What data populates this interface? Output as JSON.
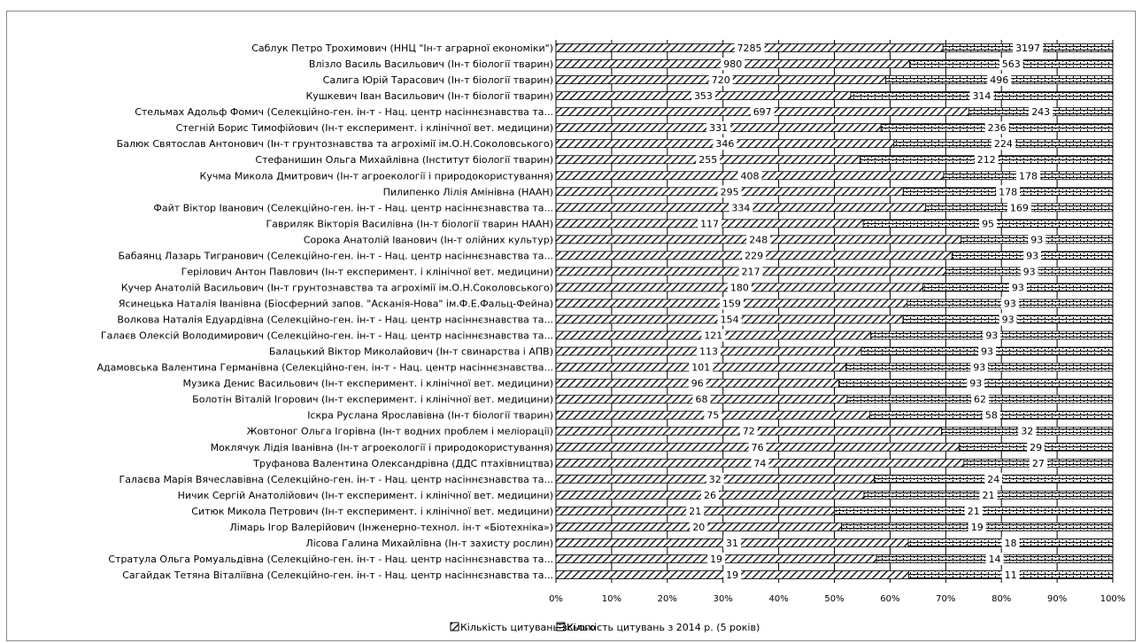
{
  "chart_data": {
    "type": "bar",
    "orientation": "horizontal",
    "stacking": "percent",
    "categories": [
      "Саблук Петро Трохимович (ННЦ \"Ін-т аграрної економіки\")",
      "Влізло Василь Васильович (Ін-т біології тварин)",
      "Салига Юрій Тарасович (Ін-т біології тварин)",
      "Кушкевич Іван Васильович (Ін-т біології тварин)",
      "Стельмах Адольф Фомич (Селекційно-ген. ін-т - Нац. центр насіннєзнавства та...",
      "Стегній Борис Тимофійович (Ін-т експеримент. і клінічної вет. медицини)",
      "Балюк Святослав Антонович (Ін-т грунтознавства та агрохімії ім.О.Н.Соколовського)",
      "Стефанишин Ольга Михайлівна (Інститут біології тварин)",
      "Кучма Микола Дмитрович (Ін-т агроекології і природокористування)",
      "Пилипенко Лілія Амінівна (НААН)",
      "Файт Віктор Іванович (Селекційно-ген. ін-т - Нац. центр насіннєзнавства та...",
      "Гавриляк Вікторія Василівна (Ін-т біології тварин НААН)",
      "Сорока Анатолій Іванович (Ін-т олійних культур)",
      "Бабаянц Лазарь Тигранович (Селекційно-ген. ін-т - Нац. центр насіннєзнавства та...",
      "Герілович Антон Павлович (Ін-т експеримент. і клінічної вет. медицини)",
      "Кучер Анатолій Васильович (Ін-т грунтознавства та агрохімії ім.О.Н.Соколовського)",
      "Ясинецька Наталія Іванівна (Біосферний запов. \"Асканія-Нова\" ім.Ф.Е.Фальц-Фейна)",
      "Волкова Наталія Едуардівна (Селекційно-ген. ін-т - Нац. центр насіннєзнавства та...",
      "Галаєв Олексій Володимирович (Селекційно-ген. ін-т - Нац. центр насіннєзнавства та...",
      "Балацький Віктор Миколайович (Ін-т свинарства і АПВ)",
      "Адамовська Валентина Германівна (Селекційно-ген. ін-т - Нац. центр насіннєзнавства...",
      "Музика Денис Васильович (Ін-т експеримент. і клінічної вет. медицини)",
      "Болотін Віталій Ігорович (Ін-т експеримент. і клінічної вет. медицини)",
      "Іскра Руслана Ярославівна (Ін-т біології тварин)",
      "Жовтоног Ольга Ігорівна (Ін-т водних проблем і меліорації)",
      "Моклячук Лідія Іванівна (Ін-т агроекології і природокористування)",
      "Труфанова Валентина Олександрівна (ДДС птахівництва)",
      "Галаєва Марія Вячеславівна (Селекційно-ген. ін-т - Нац. центр насіннєзнавства та...",
      "Ничик Сергій Анатолійович (Ін-т експеримент. і клінічної вет. медицини)",
      "Ситюк Микола Петрович (Ін-т експеримент. і клінічної вет. медицини)",
      "Лімарь Ігор Валерійович (Інженерно-технол. ін-т «Біотехніка»)",
      "Лісова Галина Михайлівна (Ін-т захисту рослин)",
      "Стратула Ольга Ромуальдівна (Селекційно-ген. ін-т - Нац. центр насіннєзнавства та...",
      "Сагайдак Тетяна Віталіївна (Селекційно-ген. ін-т - Нац. центр насіннєзнавства та..."
    ],
    "series": [
      {
        "name": "Кількість цитувань всього",
        "values": [
          7285,
          980,
          720,
          353,
          697,
          331,
          346,
          255,
          408,
          295,
          334,
          117,
          248,
          229,
          217,
          180,
          159,
          154,
          121,
          113,
          101,
          96,
          68,
          75,
          72,
          76,
          74,
          32,
          26,
          21,
          20,
          31,
          19,
          19
        ]
      },
      {
        "name": "Кількість цитувань з 2014 р. (5 років)",
        "values": [
          3197,
          563,
          496,
          314,
          243,
          236,
          224,
          212,
          178,
          178,
          169,
          95,
          93,
          93,
          93,
          93,
          93,
          93,
          93,
          93,
          93,
          93,
          62,
          58,
          32,
          29,
          27,
          24,
          21,
          21,
          19,
          18,
          14,
          11
        ]
      }
    ],
    "x_ticks": [
      "0%",
      "10%",
      "20%",
      "30%",
      "40%",
      "50%",
      "60%",
      "70%",
      "80%",
      "90%",
      "100%"
    ],
    "xlim": [
      0,
      100
    ],
    "grid": "vertical",
    "legend_position": "bottom"
  }
}
